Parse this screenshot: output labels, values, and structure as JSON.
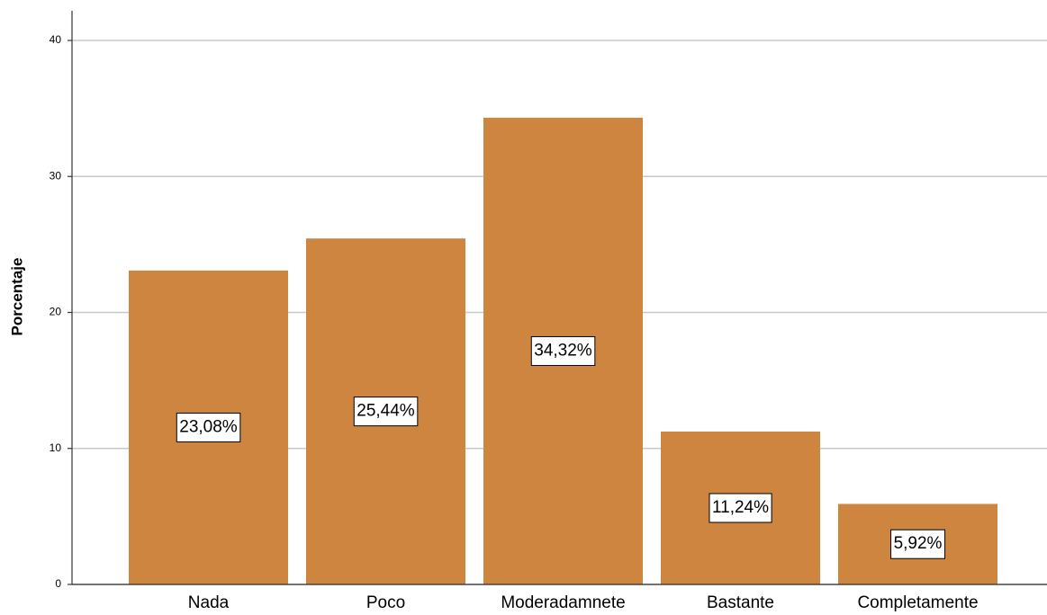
{
  "chart_data": {
    "type": "bar",
    "ylabel": "Porcentaje",
    "categories": [
      "Nada",
      "Poco",
      "Moderadamnete",
      "Bastante",
      "Completamente"
    ],
    "values": [
      23.08,
      25.44,
      34.32,
      11.24,
      5.92
    ],
    "value_labels": [
      "23,08%",
      "25,44%",
      "34,32%",
      "11,24%",
      "5,92%"
    ],
    "color": "#cd8540",
    "ylim": [
      0,
      42
    ],
    "yticks": [
      0,
      10,
      20,
      30,
      40
    ],
    "grid": true
  }
}
